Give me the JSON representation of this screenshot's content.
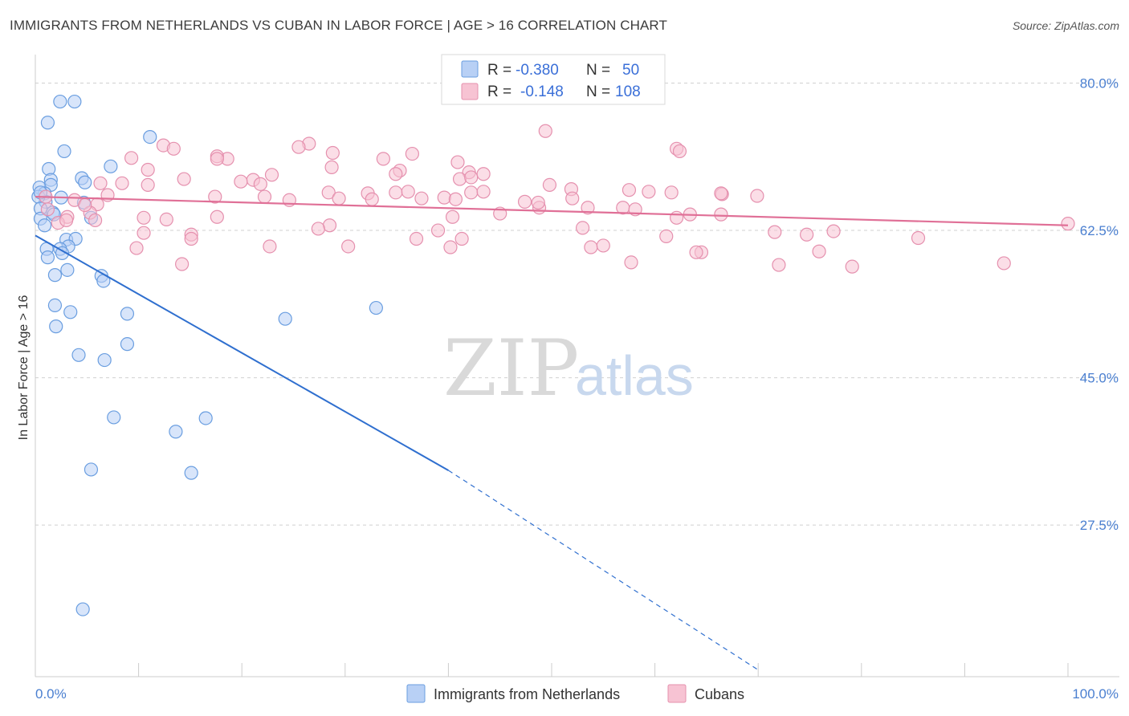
{
  "header": {
    "title": "IMMIGRANTS FROM NETHERLANDS VS CUBAN IN LABOR FORCE | AGE > 16 CORRELATION CHART",
    "source": "Source: ZipAtlas.com"
  },
  "watermark": {
    "zip": "ZIP",
    "atlas": "atlas"
  },
  "legend_top": [
    {
      "r_label": "R =",
      "r_value": "-0.380",
      "n_label": "N =",
      "n_value": "50"
    },
    {
      "r_label": "R =",
      "r_value": "-0.148",
      "n_label": "N =",
      "n_value": "108"
    }
  ],
  "colors": {
    "blue_fill": "#b8d0f5",
    "blue_stroke": "#6a9ee0",
    "blue_line": "#2f6fcf",
    "pink_fill": "#f7c3d3",
    "pink_stroke": "#e590ae",
    "pink_line": "#e07097",
    "grid": "#d0d0d0",
    "tick_text": "#4a7fd0"
  },
  "chart_data": {
    "type": "scatter",
    "xlabel": "",
    "ylabel": "In Labor Force | Age > 16",
    "xlim": [
      0,
      100
    ],
    "ylim": [
      9.5,
      83
    ],
    "x_tick_labels": [
      "0.0%",
      "100.0%"
    ],
    "y_ticks": [
      80.0,
      62.5,
      45.0,
      27.5
    ],
    "y_tick_labels": [
      "80.0%",
      "62.5%",
      "45.0%",
      "27.5%"
    ],
    "grid": "horizontal dashed",
    "legend": "bottom-center",
    "series": [
      {
        "name": "Immigrants from Netherlands",
        "color": "blue",
        "trend": {
          "x0": 0,
          "y0": 61.9,
          "x1": 40,
          "y1": 34.0,
          "dash_to_x": 70,
          "dash_to_y": 10.3
        },
        "points": [
          [
            2.4,
            77.8
          ],
          [
            3.8,
            77.8
          ],
          [
            1.2,
            75.3
          ],
          [
            2.8,
            71.9
          ],
          [
            11.1,
            73.6
          ],
          [
            1.3,
            69.8
          ],
          [
            7.3,
            70.1
          ],
          [
            1.5,
            68.5
          ],
          [
            4.5,
            68.7
          ],
          [
            1.5,
            67.9
          ],
          [
            4.8,
            68.2
          ],
          [
            0.4,
            67.6
          ],
          [
            0.9,
            66.9
          ],
          [
            1.0,
            65.9
          ],
          [
            0.3,
            66.5
          ],
          [
            2.5,
            66.4
          ],
          [
            4.7,
            65.8
          ],
          [
            0.5,
            65.1
          ],
          [
            1.7,
            64.6
          ],
          [
            0.5,
            63.9
          ],
          [
            1.8,
            64.4
          ],
          [
            5.4,
            64.0
          ],
          [
            0.9,
            63.1
          ],
          [
            3.0,
            61.4
          ],
          [
            3.9,
            61.5
          ],
          [
            3.2,
            60.6
          ],
          [
            1.1,
            60.3
          ],
          [
            2.4,
            60.3
          ],
          [
            2.6,
            59.8
          ],
          [
            1.2,
            59.3
          ],
          [
            3.1,
            57.8
          ],
          [
            1.9,
            57.2
          ],
          [
            6.4,
            57.1
          ],
          [
            6.6,
            56.5
          ],
          [
            1.9,
            53.6
          ],
          [
            3.4,
            52.8
          ],
          [
            8.9,
            52.6
          ],
          [
            24.2,
            52.0
          ],
          [
            33.0,
            53.3
          ],
          [
            2.0,
            51.1
          ],
          [
            8.9,
            49.0
          ],
          [
            4.2,
            47.7
          ],
          [
            6.7,
            47.1
          ],
          [
            7.6,
            40.3
          ],
          [
            16.5,
            40.2
          ],
          [
            13.6,
            38.6
          ],
          [
            5.4,
            34.1
          ],
          [
            15.1,
            33.7
          ],
          [
            4.6,
            17.5
          ],
          [
            0.5,
            67.0
          ]
        ]
      },
      {
        "name": "Cubans",
        "color": "pink",
        "trend": {
          "x0": 0,
          "y0": 66.5,
          "x1": 100,
          "y1": 63.1
        },
        "points": [
          [
            49.4,
            74.3
          ],
          [
            12.4,
            72.6
          ],
          [
            26.5,
            72.8
          ],
          [
            13.4,
            72.2
          ],
          [
            25.5,
            72.4
          ],
          [
            28.8,
            71.7
          ],
          [
            36.5,
            71.6
          ],
          [
            33.7,
            71.0
          ],
          [
            62.1,
            72.2
          ],
          [
            62.4,
            71.9
          ],
          [
            18.6,
            71.0
          ],
          [
            17.6,
            71.3
          ],
          [
            40.9,
            70.6
          ],
          [
            9.3,
            71.1
          ],
          [
            17.6,
            71.0
          ],
          [
            28.7,
            70.0
          ],
          [
            35.3,
            69.6
          ],
          [
            42.0,
            69.4
          ],
          [
            10.9,
            69.7
          ],
          [
            34.9,
            69.2
          ],
          [
            43.4,
            69.2
          ],
          [
            14.4,
            68.6
          ],
          [
            21.1,
            68.5
          ],
          [
            6.3,
            68.1
          ],
          [
            19.9,
            68.3
          ],
          [
            21.8,
            68.0
          ],
          [
            22.9,
            69.1
          ],
          [
            41.1,
            68.6
          ],
          [
            42.2,
            68.8
          ],
          [
            8.4,
            68.1
          ],
          [
            10.9,
            67.9
          ],
          [
            42.2,
            67.0
          ],
          [
            49.8,
            67.9
          ],
          [
            34.9,
            67.0
          ],
          [
            36.1,
            67.1
          ],
          [
            57.5,
            67.3
          ],
          [
            59.4,
            67.1
          ],
          [
            43.4,
            67.1
          ],
          [
            28.4,
            67.0
          ],
          [
            32.2,
            66.9
          ],
          [
            48.8,
            65.2
          ],
          [
            51.9,
            67.4
          ],
          [
            7.0,
            66.7
          ],
          [
            17.4,
            66.5
          ],
          [
            39.6,
            66.4
          ],
          [
            32.6,
            66.2
          ],
          [
            40.7,
            66.2
          ],
          [
            61.6,
            67.0
          ],
          [
            66.5,
            66.8
          ],
          [
            1.0,
            66.5
          ],
          [
            22.2,
            66.5
          ],
          [
            3.8,
            66.1
          ],
          [
            52.0,
            66.3
          ],
          [
            29.4,
            66.3
          ],
          [
            37.4,
            66.3
          ],
          [
            56.9,
            65.2
          ],
          [
            66.4,
            66.9
          ],
          [
            69.9,
            66.6
          ],
          [
            1.2,
            65.0
          ],
          [
            6.0,
            65.6
          ],
          [
            24.6,
            66.1
          ],
          [
            47.4,
            65.9
          ],
          [
            48.7,
            65.8
          ],
          [
            45.0,
            64.5
          ],
          [
            53.5,
            65.2
          ],
          [
            58.1,
            65.0
          ],
          [
            5.3,
            64.6
          ],
          [
            10.5,
            64.0
          ],
          [
            4.8,
            65.5
          ],
          [
            3.1,
            64.1
          ],
          [
            12.7,
            63.8
          ],
          [
            17.6,
            64.1
          ],
          [
            40.4,
            64.1
          ],
          [
            5.8,
            63.7
          ],
          [
            62.1,
            64.0
          ],
          [
            63.4,
            64.4
          ],
          [
            66.4,
            64.4
          ],
          [
            2.2,
            63.4
          ],
          [
            28.5,
            63.1
          ],
          [
            27.4,
            62.7
          ],
          [
            3.0,
            63.7
          ],
          [
            10.5,
            62.2
          ],
          [
            53.0,
            62.8
          ],
          [
            15.1,
            62.0
          ],
          [
            71.6,
            62.3
          ],
          [
            74.7,
            62.0
          ],
          [
            77.3,
            62.4
          ],
          [
            41.3,
            61.5
          ],
          [
            15.1,
            61.5
          ],
          [
            36.9,
            61.5
          ],
          [
            39.0,
            62.5
          ],
          [
            61.1,
            61.8
          ],
          [
            85.5,
            61.6
          ],
          [
            100.0,
            63.3
          ],
          [
            22.7,
            60.6
          ],
          [
            9.8,
            60.4
          ],
          [
            30.3,
            60.6
          ],
          [
            53.8,
            60.5
          ],
          [
            55.0,
            60.7
          ],
          [
            40.2,
            60.5
          ],
          [
            64.5,
            59.9
          ],
          [
            75.9,
            60.0
          ],
          [
            14.2,
            58.5
          ],
          [
            64.0,
            59.9
          ],
          [
            57.7,
            58.7
          ],
          [
            72.0,
            58.4
          ],
          [
            93.8,
            58.6
          ],
          [
            79.1,
            58.2
          ]
        ]
      }
    ]
  }
}
